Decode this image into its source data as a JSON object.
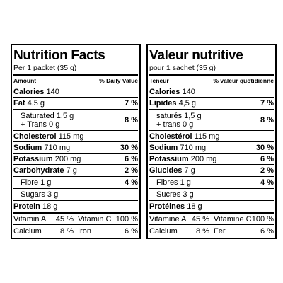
{
  "panels": [
    {
      "title": "Nutrition Facts",
      "serving": "Per 1 packet (35 g)",
      "header": {
        "left": "Amount",
        "right": "% Daily Value"
      },
      "rows": [
        {
          "label": "Calories",
          "amount": "140"
        },
        {
          "label": "Fat",
          "amount": "4.5 g",
          "dv": "7 %"
        },
        {
          "lines": [
            "Saturated 1.5 g",
            "+ Trans 0 g"
          ],
          "dv": "8 %"
        },
        {
          "label": "Cholesterol",
          "amount": "115 mg"
        },
        {
          "label": "Sodium",
          "amount": "710 mg",
          "dv": "30 %"
        },
        {
          "label": "Potassium",
          "amount": "200 mg",
          "dv": "6 %"
        },
        {
          "label": "Carbohydrate",
          "amount": "7 g",
          "dv": "2 %"
        },
        {
          "sub": "Fibre",
          "amount": "1 g",
          "dv": "4 %"
        },
        {
          "sub": "Sugars",
          "amount": "3 g"
        },
        {
          "label": "Protein",
          "amount": "18 g"
        }
      ],
      "vitamins": [
        [
          [
            "Vitamin A",
            "45 %"
          ],
          [
            "Vitamin C",
            "100 %"
          ]
        ],
        [
          [
            "Calcium",
            "8 %"
          ],
          [
            "Iron",
            "6 %"
          ]
        ]
      ]
    },
    {
      "title": "Valeur nutritive",
      "serving": "pour 1 sachet (35 g)",
      "header": {
        "left": "Teneur",
        "right": "% valeur quotidienne"
      },
      "rows": [
        {
          "label": "Calories",
          "amount": "140"
        },
        {
          "label": "Lipides",
          "amount": "4,5 g",
          "dv": "7 %"
        },
        {
          "lines": [
            "saturés 1,5 g",
            "+ trans 0 g"
          ],
          "dv": "8 %"
        },
        {
          "label": "Cholestérol",
          "amount": "115 mg"
        },
        {
          "label": "Sodium",
          "amount": "710 mg",
          "dv": "30 %"
        },
        {
          "label": "Potassium",
          "amount": "200 mg",
          "dv": "6 %"
        },
        {
          "label": "Glucides",
          "amount": "7 g",
          "dv": "2 %"
        },
        {
          "sub": "Fibres",
          "amount": "1 g",
          "dv": "4 %"
        },
        {
          "sub": "Sucres",
          "amount": "3 g"
        },
        {
          "label": "Protéines",
          "amount": "18 g"
        }
      ],
      "vitamins": [
        [
          [
            "Vitamine A",
            "45 %"
          ],
          [
            "Vitamine C",
            "100 %"
          ]
        ],
        [
          [
            "Calcium",
            "8 %"
          ],
          [
            "Fer",
            "6 %"
          ]
        ]
      ]
    }
  ]
}
